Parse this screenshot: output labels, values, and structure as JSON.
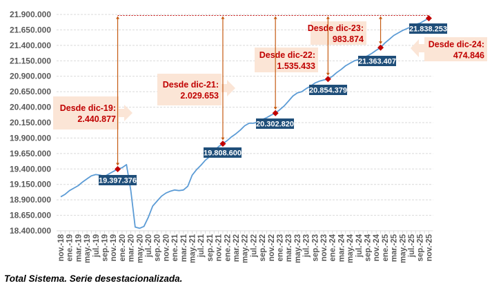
{
  "caption": "Total Sistema. Serie desestacionalizada.",
  "chart_data": {
    "type": "line",
    "ylim": [
      18400000,
      21900000
    ],
    "ytick_step": 250000,
    "ytick_labels": [
      "18.400.000",
      "18.650.000",
      "18.900.000",
      "19.150.000",
      "19.400.000",
      "19.650.000",
      "19.900.000",
      "20.150.000",
      "20.400.000",
      "20.650.000",
      "20.900.000",
      "21.150.000",
      "21.400.000",
      "21.650.000",
      "21.900.000"
    ],
    "grid": true,
    "x": [
      "nov.-18",
      "dic.-18",
      "ene.-19",
      "feb.-19",
      "mar.-19",
      "abr.-19",
      "may.-19",
      "jun.-19",
      "jul.-19",
      "ago.-19",
      "sep.-19",
      "oct.-19",
      "nov.-19",
      "dic.-19",
      "ene.-20",
      "feb.-20",
      "mar.-20",
      "abr.-20",
      "may.-20",
      "jun.-20",
      "jul.-20",
      "ago.-20",
      "sep.-20",
      "oct.-20",
      "nov.-20",
      "dic.-20",
      "ene.-21",
      "feb.-21",
      "mar.-21",
      "abr.-21",
      "may.-21",
      "jun.-21",
      "jul.-21",
      "ago.-21",
      "sep.-21",
      "oct.-21",
      "nov.-21",
      "dic.-21",
      "ene.-22",
      "feb.-22",
      "mar.-22",
      "abr.-22",
      "may.-22",
      "jun.-22",
      "jul.-22",
      "ago.-22",
      "sep.-22",
      "oct.-22",
      "nov.-22",
      "dic.-22",
      "ene.-23",
      "feb.-23",
      "mar.-23",
      "abr.-23",
      "may.-23",
      "jun.-23",
      "jul.-23",
      "ago.-23",
      "sep.-23",
      "oct.-23",
      "nov.-23",
      "dic.-23",
      "ene.-24",
      "feb.-24",
      "mar.-24",
      "abr.-24",
      "may.-24",
      "jun.-24",
      "jul.-24",
      "ago.-24",
      "sep.-24",
      "oct.-24",
      "nov.-24",
      "dic.-24",
      "ene.-25",
      "feb.-25",
      "mar.-25",
      "abr.-25",
      "may.-25",
      "jun.-25",
      "jul.-25",
      "ago.-25",
      "sep.-25",
      "oct.-25",
      "nov.-25"
    ],
    "xtick_every": 2,
    "values": [
      18950000,
      18990000,
      19050000,
      19090000,
      19130000,
      19190000,
      19240000,
      19290000,
      19310000,
      19300000,
      19280000,
      19320000,
      19360000,
      19397376,
      19420000,
      19470000,
      19050000,
      18460000,
      18440000,
      18470000,
      18620000,
      18800000,
      18880000,
      18960000,
      19010000,
      19040000,
      19060000,
      19050000,
      19060000,
      19120000,
      19300000,
      19390000,
      19460000,
      19540000,
      19600000,
      19700000,
      19760000,
      19808600,
      19860000,
      19920000,
      19970000,
      20030000,
      20100000,
      20140000,
      20140000,
      20160000,
      20200000,
      20230000,
      20270000,
      20302820,
      20360000,
      20420000,
      20500000,
      20580000,
      20630000,
      20650000,
      20700000,
      20740000,
      20790000,
      20820000,
      20840000,
      20854379,
      20900000,
      20960000,
      21010000,
      21070000,
      21110000,
      21150000,
      21170000,
      21200000,
      21230000,
      21270000,
      21320000,
      21363407,
      21440000,
      21500000,
      21560000,
      21600000,
      21640000,
      21670000,
      21700000,
      21740000,
      21760000,
      21800000,
      21838253
    ],
    "highlighted_points": [
      {
        "x": "dic.-19",
        "label": "19.397.376"
      },
      {
        "x": "dic.-21",
        "label": "19.808.600"
      },
      {
        "x": "dic.-22",
        "label": "20.302.820"
      },
      {
        "x": "dic.-23",
        "label": "20.854.379"
      },
      {
        "x": "dic.-24",
        "label": "21.363.407"
      },
      {
        "x": "nov.-25",
        "label": "21.838.253"
      }
    ],
    "annotations": [
      {
        "from": "dic.-19",
        "title": "Desde dic-19:",
        "value": "2.440.877"
      },
      {
        "from": "dic.-21",
        "title": "Desde dic-21:",
        "value": "2.029.653"
      },
      {
        "from": "dic.-22",
        "title": "Desde dic-22:",
        "value": "1.535.433"
      },
      {
        "from": "dic.-23",
        "title": "Desde dic-23:",
        "value": "983.874"
      },
      {
        "from": "dic.-24",
        "title": "Desde dic-24:",
        "value": "474.846"
      }
    ],
    "colors": {
      "line": "#5b9bd5",
      "marker": "#c00000",
      "label_bg": "#1f4e79",
      "annotation_bg": "#fbe5d6",
      "annotation_text": "#c00000",
      "arrow": "#c55a11",
      "axis_text": "#595959",
      "grid": "#d9d9d9"
    }
  }
}
